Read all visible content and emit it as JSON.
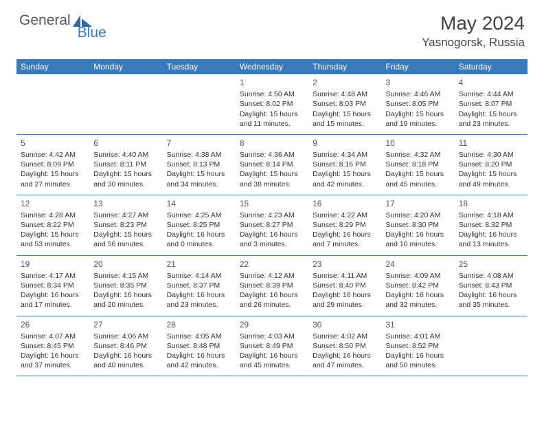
{
  "brand": {
    "part1": "General",
    "part2": "Blue"
  },
  "title": "May 2024",
  "location": "Yasnogorsk, Russia",
  "colors": {
    "header_bg": "#3a7ab8",
    "brand_gray": "#5a5a5a",
    "brand_blue": "#3a7ab8",
    "text": "#333333",
    "bg": "#ffffff"
  },
  "dayNames": [
    "Sunday",
    "Monday",
    "Tuesday",
    "Wednesday",
    "Thursday",
    "Friday",
    "Saturday"
  ],
  "weeks": [
    [
      null,
      null,
      null,
      {
        "d": "1",
        "sr": "Sunrise: 4:50 AM",
        "ss": "Sunset: 8:02 PM",
        "dl1": "Daylight: 15 hours",
        "dl2": "and 11 minutes."
      },
      {
        "d": "2",
        "sr": "Sunrise: 4:48 AM",
        "ss": "Sunset: 8:03 PM",
        "dl1": "Daylight: 15 hours",
        "dl2": "and 15 minutes."
      },
      {
        "d": "3",
        "sr": "Sunrise: 4:46 AM",
        "ss": "Sunset: 8:05 PM",
        "dl1": "Daylight: 15 hours",
        "dl2": "and 19 minutes."
      },
      {
        "d": "4",
        "sr": "Sunrise: 4:44 AM",
        "ss": "Sunset: 8:07 PM",
        "dl1": "Daylight: 15 hours",
        "dl2": "and 23 minutes."
      }
    ],
    [
      {
        "d": "5",
        "sr": "Sunrise: 4:42 AM",
        "ss": "Sunset: 8:09 PM",
        "dl1": "Daylight: 15 hours",
        "dl2": "and 27 minutes."
      },
      {
        "d": "6",
        "sr": "Sunrise: 4:40 AM",
        "ss": "Sunset: 8:11 PM",
        "dl1": "Daylight: 15 hours",
        "dl2": "and 30 minutes."
      },
      {
        "d": "7",
        "sr": "Sunrise: 4:38 AM",
        "ss": "Sunset: 8:13 PM",
        "dl1": "Daylight: 15 hours",
        "dl2": "and 34 minutes."
      },
      {
        "d": "8",
        "sr": "Sunrise: 4:36 AM",
        "ss": "Sunset: 8:14 PM",
        "dl1": "Daylight: 15 hours",
        "dl2": "and 38 minutes."
      },
      {
        "d": "9",
        "sr": "Sunrise: 4:34 AM",
        "ss": "Sunset: 8:16 PM",
        "dl1": "Daylight: 15 hours",
        "dl2": "and 42 minutes."
      },
      {
        "d": "10",
        "sr": "Sunrise: 4:32 AM",
        "ss": "Sunset: 8:18 PM",
        "dl1": "Daylight: 15 hours",
        "dl2": "and 45 minutes."
      },
      {
        "d": "11",
        "sr": "Sunrise: 4:30 AM",
        "ss": "Sunset: 8:20 PM",
        "dl1": "Daylight: 15 hours",
        "dl2": "and 49 minutes."
      }
    ],
    [
      {
        "d": "12",
        "sr": "Sunrise: 4:28 AM",
        "ss": "Sunset: 8:22 PM",
        "dl1": "Daylight: 15 hours",
        "dl2": "and 53 minutes."
      },
      {
        "d": "13",
        "sr": "Sunrise: 4:27 AM",
        "ss": "Sunset: 8:23 PM",
        "dl1": "Daylight: 15 hours",
        "dl2": "and 56 minutes."
      },
      {
        "d": "14",
        "sr": "Sunrise: 4:25 AM",
        "ss": "Sunset: 8:25 PM",
        "dl1": "Daylight: 16 hours",
        "dl2": "and 0 minutes."
      },
      {
        "d": "15",
        "sr": "Sunrise: 4:23 AM",
        "ss": "Sunset: 8:27 PM",
        "dl1": "Daylight: 16 hours",
        "dl2": "and 3 minutes."
      },
      {
        "d": "16",
        "sr": "Sunrise: 4:22 AM",
        "ss": "Sunset: 8:29 PM",
        "dl1": "Daylight: 16 hours",
        "dl2": "and 7 minutes."
      },
      {
        "d": "17",
        "sr": "Sunrise: 4:20 AM",
        "ss": "Sunset: 8:30 PM",
        "dl1": "Daylight: 16 hours",
        "dl2": "and 10 minutes."
      },
      {
        "d": "18",
        "sr": "Sunrise: 4:18 AM",
        "ss": "Sunset: 8:32 PM",
        "dl1": "Daylight: 16 hours",
        "dl2": "and 13 minutes."
      }
    ],
    [
      {
        "d": "19",
        "sr": "Sunrise: 4:17 AM",
        "ss": "Sunset: 8:34 PM",
        "dl1": "Daylight: 16 hours",
        "dl2": "and 17 minutes."
      },
      {
        "d": "20",
        "sr": "Sunrise: 4:15 AM",
        "ss": "Sunset: 8:35 PM",
        "dl1": "Daylight: 16 hours",
        "dl2": "and 20 minutes."
      },
      {
        "d": "21",
        "sr": "Sunrise: 4:14 AM",
        "ss": "Sunset: 8:37 PM",
        "dl1": "Daylight: 16 hours",
        "dl2": "and 23 minutes."
      },
      {
        "d": "22",
        "sr": "Sunrise: 4:12 AM",
        "ss": "Sunset: 8:39 PM",
        "dl1": "Daylight: 16 hours",
        "dl2": "and 26 minutes."
      },
      {
        "d": "23",
        "sr": "Sunrise: 4:11 AM",
        "ss": "Sunset: 8:40 PM",
        "dl1": "Daylight: 16 hours",
        "dl2": "and 29 minutes."
      },
      {
        "d": "24",
        "sr": "Sunrise: 4:09 AM",
        "ss": "Sunset: 8:42 PM",
        "dl1": "Daylight: 16 hours",
        "dl2": "and 32 minutes."
      },
      {
        "d": "25",
        "sr": "Sunrise: 4:08 AM",
        "ss": "Sunset: 8:43 PM",
        "dl1": "Daylight: 16 hours",
        "dl2": "and 35 minutes."
      }
    ],
    [
      {
        "d": "26",
        "sr": "Sunrise: 4:07 AM",
        "ss": "Sunset: 8:45 PM",
        "dl1": "Daylight: 16 hours",
        "dl2": "and 37 minutes."
      },
      {
        "d": "27",
        "sr": "Sunrise: 4:06 AM",
        "ss": "Sunset: 8:46 PM",
        "dl1": "Daylight: 16 hours",
        "dl2": "and 40 minutes."
      },
      {
        "d": "28",
        "sr": "Sunrise: 4:05 AM",
        "ss": "Sunset: 8:48 PM",
        "dl1": "Daylight: 16 hours",
        "dl2": "and 42 minutes."
      },
      {
        "d": "29",
        "sr": "Sunrise: 4:03 AM",
        "ss": "Sunset: 8:49 PM",
        "dl1": "Daylight: 16 hours",
        "dl2": "and 45 minutes."
      },
      {
        "d": "30",
        "sr": "Sunrise: 4:02 AM",
        "ss": "Sunset: 8:50 PM",
        "dl1": "Daylight: 16 hours",
        "dl2": "and 47 minutes."
      },
      {
        "d": "31",
        "sr": "Sunrise: 4:01 AM",
        "ss": "Sunset: 8:52 PM",
        "dl1": "Daylight: 16 hours",
        "dl2": "and 50 minutes."
      },
      null
    ]
  ]
}
